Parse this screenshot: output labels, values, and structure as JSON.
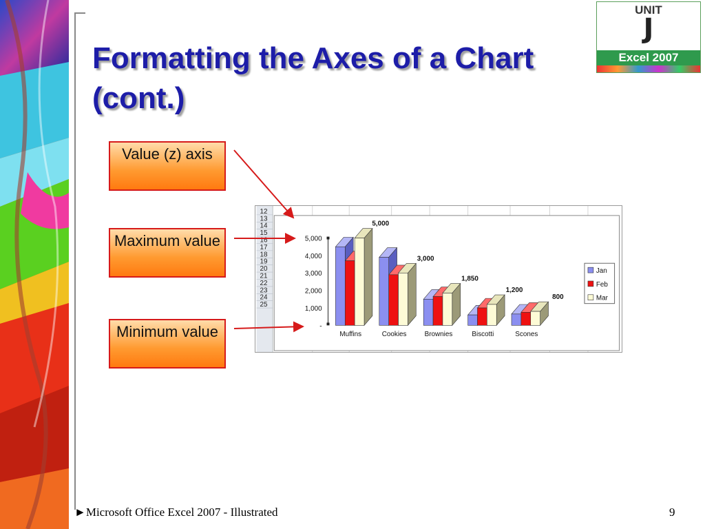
{
  "slide": {
    "title": "Formatting the Axes of a Chart (cont.)",
    "callouts": [
      "Value (z) axis",
      "Maximum value",
      "Minimum value"
    ],
    "footer": "Microsoft Office Excel 2007 - Illustrated",
    "page_number": "9",
    "footer_marker": "►"
  },
  "badge": {
    "unit_label": "UNIT",
    "letter": "J",
    "product": "Excel 2007"
  },
  "spreadsheet": {
    "row_numbers": [
      "12",
      "13",
      "14",
      "15",
      "16",
      "17",
      "18",
      "19",
      "20",
      "21",
      "22",
      "23",
      "24",
      "25"
    ]
  },
  "chart_data": {
    "type": "bar",
    "categories": [
      "Muffins",
      "Cookies",
      "Brownies",
      "Biscotti",
      "Scones"
    ],
    "series": [
      {
        "name": "Jan",
        "values": [
          4500,
          3900,
          1500,
          600,
          650
        ],
        "color": "#8b8ff0"
      },
      {
        "name": "Feb",
        "values": [
          3700,
          2900,
          1650,
          1000,
          750
        ],
        "color": "#ee1111"
      },
      {
        "name": "Mar",
        "values": [
          5000,
          3000,
          1850,
          1200,
          800
        ],
        "color": "#fdfbd6"
      }
    ],
    "data_labels": [
      "5,000",
      "3,000",
      "1,850",
      "1,200",
      "800"
    ],
    "y_ticks": [
      "-",
      "1,000",
      "2,000",
      "3,000",
      "4,000",
      "5,000"
    ],
    "ylim": [
      0,
      5000
    ],
    "grid": false,
    "legend_position": "right"
  },
  "colors": {
    "title": "#1d1da8",
    "callout_border": "#d61a1a",
    "arrow": "#d61a1a"
  }
}
